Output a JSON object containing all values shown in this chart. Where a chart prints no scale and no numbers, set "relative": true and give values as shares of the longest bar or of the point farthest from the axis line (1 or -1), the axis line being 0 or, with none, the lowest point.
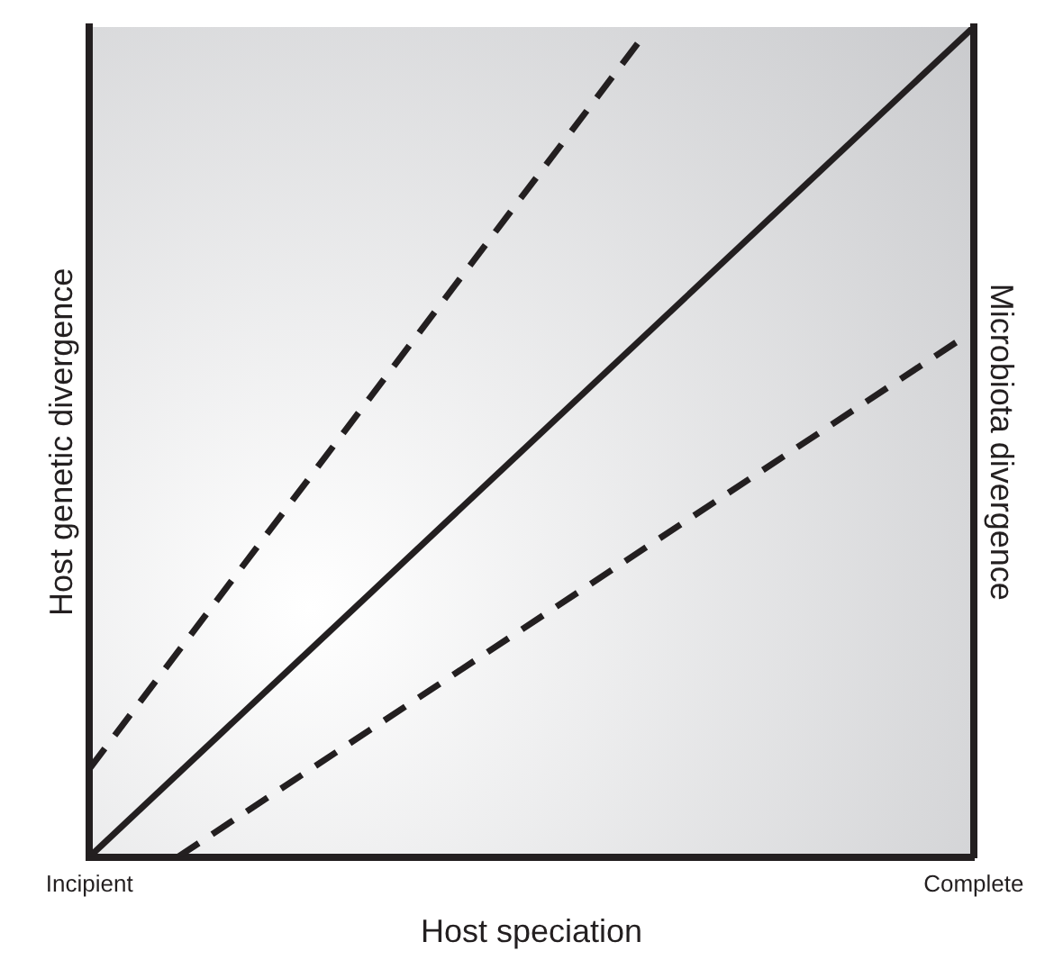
{
  "chart_data": {
    "type": "line",
    "relative": true,
    "xlabel": "Host speciation",
    "ylabel": "Host genetic divergence",
    "y2label": "Microbiota divergence",
    "categories": [
      "Incipient",
      null,
      null,
      null,
      null,
      null,
      null,
      null,
      null,
      null,
      null,
      null,
      null,
      null,
      null,
      null,
      null,
      null,
      null,
      null,
      null,
      null,
      null,
      null,
      null,
      null,
      null,
      null,
      null,
      null,
      null,
      null,
      null,
      null,
      null,
      null,
      null,
      null,
      null,
      null,
      null,
      null,
      null,
      null,
      null,
      null,
      null,
      null,
      null,
      null,
      "Complete"
    ],
    "tick_labels": "x",
    "grid": false,
    "legend": false,
    "marker": "none",
    "series": [
      {
        "color": "#231f20",
        "line_style": "dashed",
        "values": [
          0.106,
          null,
          null,
          null,
          null,
          null,
          null,
          null,
          null,
          null,
          null,
          null,
          null,
          null,
          null,
          null,
          null,
          null,
          null,
          null,
          null,
          null,
          null,
          null,
          null,
          null,
          null,
          null,
          null,
          null,
          null,
          0.98,
          null,
          null,
          null,
          null,
          null,
          null,
          null,
          null,
          null,
          null,
          null,
          null,
          null,
          null,
          null,
          null,
          null,
          null,
          null
        ]
      },
      {
        "color": "#231f20",
        "line_style": "solid",
        "values": [
          0,
          null,
          null,
          null,
          null,
          null,
          null,
          null,
          null,
          null,
          null,
          null,
          null,
          null,
          null,
          null,
          null,
          null,
          null,
          null,
          null,
          null,
          null,
          null,
          null,
          null,
          null,
          null,
          null,
          null,
          null,
          null,
          null,
          null,
          null,
          null,
          null,
          null,
          null,
          null,
          null,
          null,
          null,
          null,
          null,
          null,
          null,
          null,
          null,
          null,
          1
        ]
      },
      {
        "color": "#231f20",
        "line_style": "dashed",
        "values": [
          null,
          null,
          null,
          null,
          null,
          0,
          null,
          null,
          null,
          null,
          null,
          null,
          null,
          null,
          null,
          null,
          null,
          null,
          null,
          null,
          null,
          null,
          null,
          null,
          null,
          null,
          null,
          null,
          null,
          null,
          null,
          null,
          null,
          null,
          null,
          null,
          null,
          null,
          null,
          null,
          null,
          null,
          null,
          null,
          null,
          null,
          null,
          null,
          null,
          0.62,
          null
        ]
      }
    ]
  }
}
